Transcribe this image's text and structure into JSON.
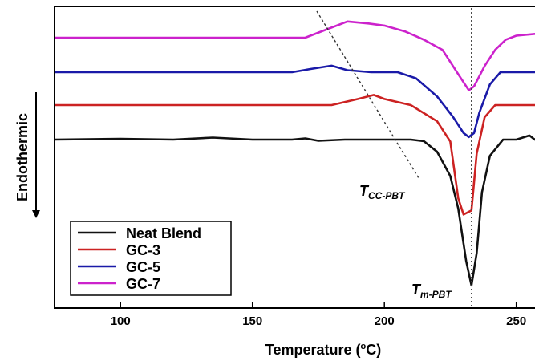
{
  "chart_data": {
    "type": "line",
    "xlabel_main": "Temperature (",
    "xlabel_unit": "°C)",
    "xlabel_unit_sup": "o",
    "ylabel": "Endothermic",
    "xlim": [
      75,
      258
    ],
    "x_ticks": [
      100,
      150,
      200,
      250
    ],
    "grid": false,
    "legend_position": "bottom-left",
    "annotations": {
      "tcc_main": "T",
      "tcc_sub": "CC-PBT",
      "tm_main": "T",
      "tm_sub": "m-PBT",
      "tm_x": 233
    },
    "series": [
      {
        "name": "Neat Blend",
        "color": "#111111",
        "points": [
          [
            75,
            0.0
          ],
          [
            100,
            0.2
          ],
          [
            120,
            0.0
          ],
          [
            135,
            0.5
          ],
          [
            150,
            0.0
          ],
          [
            165,
            0.0
          ],
          [
            170,
            0.3
          ],
          [
            175,
            -0.3
          ],
          [
            185,
            0.0
          ],
          [
            200,
            0.0
          ],
          [
            210,
            0.0
          ],
          [
            215,
            -0.4
          ],
          [
            220,
            -3.0
          ],
          [
            225,
            -9.0
          ],
          [
            228,
            -17.0
          ],
          [
            231,
            -30.0
          ],
          [
            233,
            -36.0
          ],
          [
            235,
            -28.0
          ],
          [
            237,
            -13.0
          ],
          [
            240,
            -4.0
          ],
          [
            245,
            0.0
          ],
          [
            250,
            0.0
          ],
          [
            255,
            1.0
          ],
          [
            257,
            0.0
          ],
          [
            258,
            0.5
          ]
        ]
      },
      {
        "name": "GC-3",
        "color": "#cc2222",
        "points": [
          [
            75,
            0.0
          ],
          [
            120,
            0.0
          ],
          [
            150,
            0.0
          ],
          [
            170,
            0.0
          ],
          [
            180,
            0.0
          ],
          [
            190,
            1.5
          ],
          [
            196,
            2.5
          ],
          [
            200,
            1.5
          ],
          [
            210,
            0.0
          ],
          [
            220,
            -4.0
          ],
          [
            225,
            -9.0
          ],
          [
            228,
            -23.0
          ],
          [
            230,
            -27.0
          ],
          [
            233,
            -26.0
          ],
          [
            235,
            -12.0
          ],
          [
            238,
            -3.0
          ],
          [
            242,
            0.0
          ],
          [
            258,
            0.0
          ]
        ]
      },
      {
        "name": "GC-5",
        "color": "#1a1aa8",
        "points": [
          [
            75,
            0.0
          ],
          [
            120,
            0.0
          ],
          [
            150,
            0.0
          ],
          [
            165,
            0.0
          ],
          [
            172,
            0.8
          ],
          [
            180,
            1.6
          ],
          [
            186,
            0.5
          ],
          [
            195,
            0.0
          ],
          [
            205,
            0.0
          ],
          [
            212,
            -1.5
          ],
          [
            220,
            -6.0
          ],
          [
            226,
            -11.0
          ],
          [
            230,
            -15.0
          ],
          [
            232,
            -16.0
          ],
          [
            234,
            -15.0
          ],
          [
            236,
            -10.0
          ],
          [
            240,
            -3.0
          ],
          [
            244,
            0.0
          ],
          [
            258,
            0.0
          ]
        ]
      },
      {
        "name": "GC-7",
        "color": "#cc22cc",
        "points": [
          [
            75,
            0.0
          ],
          [
            120,
            0.0
          ],
          [
            160,
            0.0
          ],
          [
            170,
            0.0
          ],
          [
            178,
            2.0
          ],
          [
            186,
            4.0
          ],
          [
            194,
            3.5
          ],
          [
            200,
            3.0
          ],
          [
            208,
            1.5
          ],
          [
            215,
            -0.5
          ],
          [
            222,
            -3.0
          ],
          [
            228,
            -9.0
          ],
          [
            232,
            -13.0
          ],
          [
            234,
            -12.0
          ],
          [
            238,
            -7.0
          ],
          [
            242,
            -3.0
          ],
          [
            246,
            -0.5
          ],
          [
            250,
            0.5
          ],
          [
            258,
            1.0
          ]
        ]
      }
    ]
  }
}
